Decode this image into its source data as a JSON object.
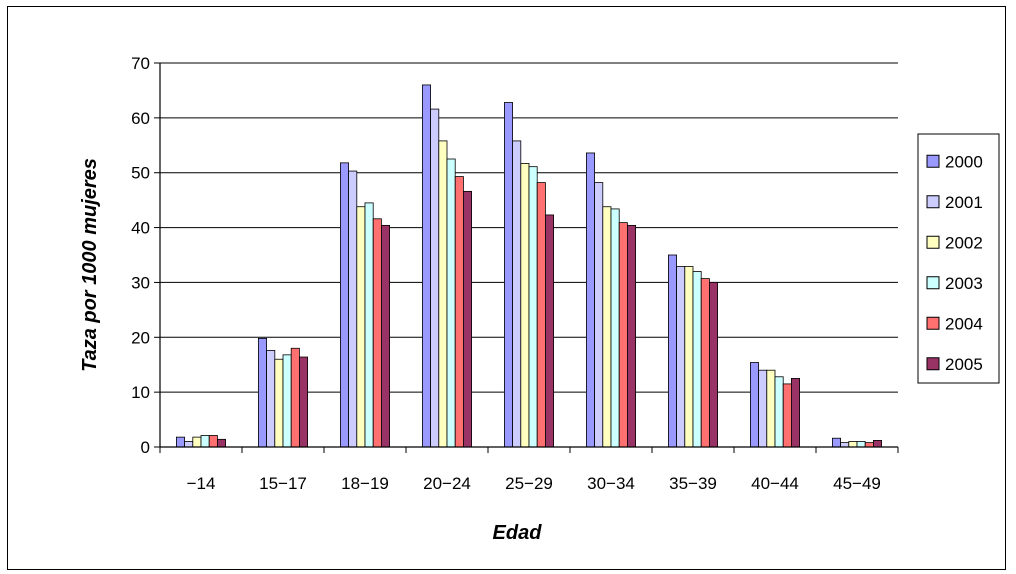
{
  "chart_data": {
    "type": "bar",
    "title": "",
    "xlabel": "Edad",
    "ylabel": "Taza por 1000 mujeres",
    "ylim": [
      0,
      70
    ],
    "yticks": [
      0,
      10,
      20,
      30,
      40,
      50,
      60,
      70
    ],
    "grid": true,
    "legend_position": "right",
    "categories": [
      "−14",
      "15−17",
      "18−19",
      "20−24",
      "25−29",
      "30−34",
      "35−39",
      "40−44",
      "45−49"
    ],
    "series": [
      {
        "name": "2000",
        "color": "#9999ff",
        "values": [
          1.8,
          19.8,
          51.8,
          66.0,
          62.8,
          53.6,
          35.0,
          15.4,
          1.6
        ]
      },
      {
        "name": "2001",
        "color": "#ccccff",
        "values": [
          1.0,
          17.6,
          50.3,
          61.6,
          55.8,
          48.2,
          32.9,
          14.0,
          0.8
        ]
      },
      {
        "name": "2002",
        "color": "#ffffc0",
        "values": [
          1.8,
          16.0,
          43.8,
          55.8,
          51.7,
          43.8,
          32.9,
          14.0,
          1.0
        ]
      },
      {
        "name": "2003",
        "color": "#ccffff",
        "values": [
          2.1,
          16.8,
          44.5,
          52.5,
          51.1,
          43.4,
          32.0,
          12.8,
          1.0
        ]
      },
      {
        "name": "2004",
        "color": "#ff7070",
        "values": [
          2.1,
          18.0,
          41.6,
          49.3,
          48.2,
          40.9,
          30.7,
          11.5,
          0.8
        ]
      },
      {
        "name": "2005",
        "color": "#993366",
        "values": [
          1.4,
          16.4,
          40.4,
          46.6,
          42.3,
          40.4,
          30.0,
          12.5,
          1.2
        ]
      }
    ]
  }
}
